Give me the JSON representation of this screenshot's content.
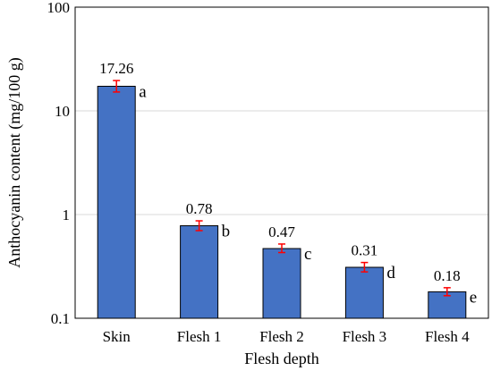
{
  "chart_data": {
    "type": "bar",
    "xlabel": "Flesh depth",
    "ylabel": "Anthocyanin content (mg/100 g)",
    "y_scale": "log",
    "ylim": [
      0.1,
      100
    ],
    "y_ticks": [
      {
        "value": 0.1,
        "label": "0.1"
      },
      {
        "value": 1,
        "label": "1"
      },
      {
        "value": 10,
        "label": "10"
      },
      {
        "value": 100,
        "label": "100"
      }
    ],
    "grid": "horizontal",
    "categories": [
      "Skin",
      "Flesh 1",
      "Flesh 2",
      "Flesh 3",
      "Flesh 4"
    ],
    "values": [
      17.26,
      0.78,
      0.47,
      0.31,
      0.18
    ],
    "value_labels": [
      "17.26",
      "0.78",
      "0.47",
      "0.31",
      "0.18"
    ],
    "error_low": [
      15.2,
      0.7,
      0.43,
      0.28,
      0.165
    ],
    "error_high": [
      19.6,
      0.87,
      0.52,
      0.345,
      0.197
    ],
    "significance_letters": [
      "a",
      "b",
      "c",
      "d",
      "e"
    ],
    "bar_color": "#4472C4",
    "error_bar_color": "#FF0000"
  }
}
